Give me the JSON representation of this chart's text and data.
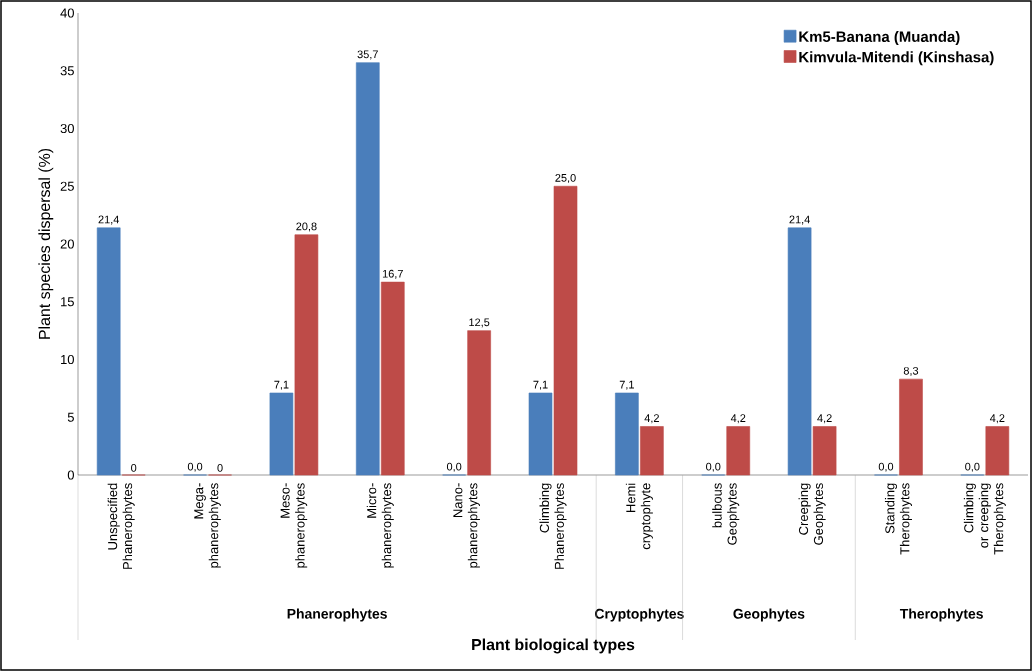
{
  "chart_data": {
    "type": "bar",
    "xlabel": "**Plant biological types**",
    "ylabel": "Plant species dispersal (%)",
    "categories": [
      "Unspecified Phanerophytes",
      "Mega-phanerophytes",
      "Meso-phanerophytes",
      "Micro-phanerophytes",
      "Nano-phanerophytes",
      "Climbing Phanerophytes",
      "Hemi cryptophyte",
      "bulbous Geophytes",
      "Creeping Geophytes",
      "Standing Therophytes",
      "Climbing or creeping Therophytes"
    ],
    "series": [
      {
        "name": "**Km5-Banana (Muanda)**",
        "color": "#4a7ebb",
        "values": [
          21.4,
          0.0,
          7.1,
          35.7,
          0.0,
          7.1,
          7.1,
          0.0,
          21.4,
          0.0,
          0.0
        ],
        "value_labels": [
          "21,4",
          "0,0",
          "7,1",
          "35,7",
          "0,0",
          "7,1",
          "7,1",
          "0,0",
          "21,4",
          "0,0",
          "0,0"
        ]
      },
      {
        "name": "**Kimvula-Mitendi (Kinshasa)**",
        "color": "#be4b48",
        "values": [
          0,
          0,
          20.8,
          16.7,
          12.5,
          25.0,
          4.2,
          4.2,
          4.2,
          8.3,
          4.2
        ],
        "value_labels": [
          "0",
          "0",
          "20,8",
          "16,7",
          "12,5",
          "25,0",
          "4,2",
          "4,2",
          "4,2",
          "8,3",
          "4,2"
        ]
      }
    ],
    "ylim": [
      0,
      40
    ],
    "yticks": [
      0,
      5,
      10,
      15,
      20,
      25,
      30,
      35,
      40
    ],
    "legend": "top right",
    "annotations": [
      "**Phanerophytes**",
      "**Cryptophytes**",
      "**Geophytes**",
      "**Therophytes**"
    ]
  }
}
